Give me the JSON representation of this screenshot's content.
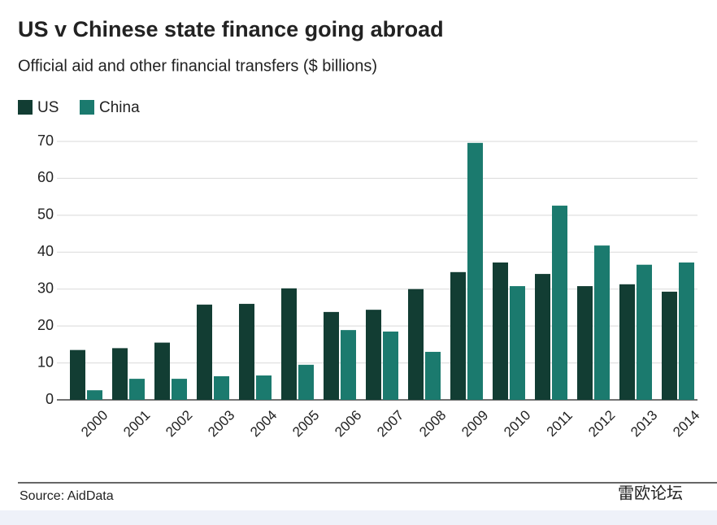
{
  "chart_data": {
    "type": "bar",
    "title": "US v Chinese state finance going abroad",
    "subtitle": "Official aid and other financial transfers ($ billions)",
    "categories": [
      "2000",
      "2001",
      "2002",
      "2003",
      "2004",
      "2005",
      "2006",
      "2007",
      "2008",
      "2009",
      "2010",
      "2011",
      "2012",
      "2013",
      "2014"
    ],
    "series": [
      {
        "name": "US",
        "color": "#123d33",
        "values": [
          13.5,
          14,
          15.5,
          25.8,
          26,
          30.2,
          23.8,
          24.4,
          30,
          34.6,
          37.2,
          34.1,
          30.8,
          31.3,
          29.3
        ]
      },
      {
        "name": "China",
        "color": "#1b7a6e",
        "values": [
          2.6,
          5.7,
          5.7,
          6.4,
          6.6,
          9.5,
          18.9,
          18.5,
          13,
          69.6,
          30.8,
          52.6,
          41.8,
          36.6,
          37.2
        ]
      }
    ],
    "ylim": [
      0,
      70
    ],
    "yticks": [
      0,
      10,
      20,
      30,
      40,
      50,
      60,
      70
    ],
    "grid": true,
    "source": "Source: AidData",
    "watermark": "雷欧论坛"
  }
}
